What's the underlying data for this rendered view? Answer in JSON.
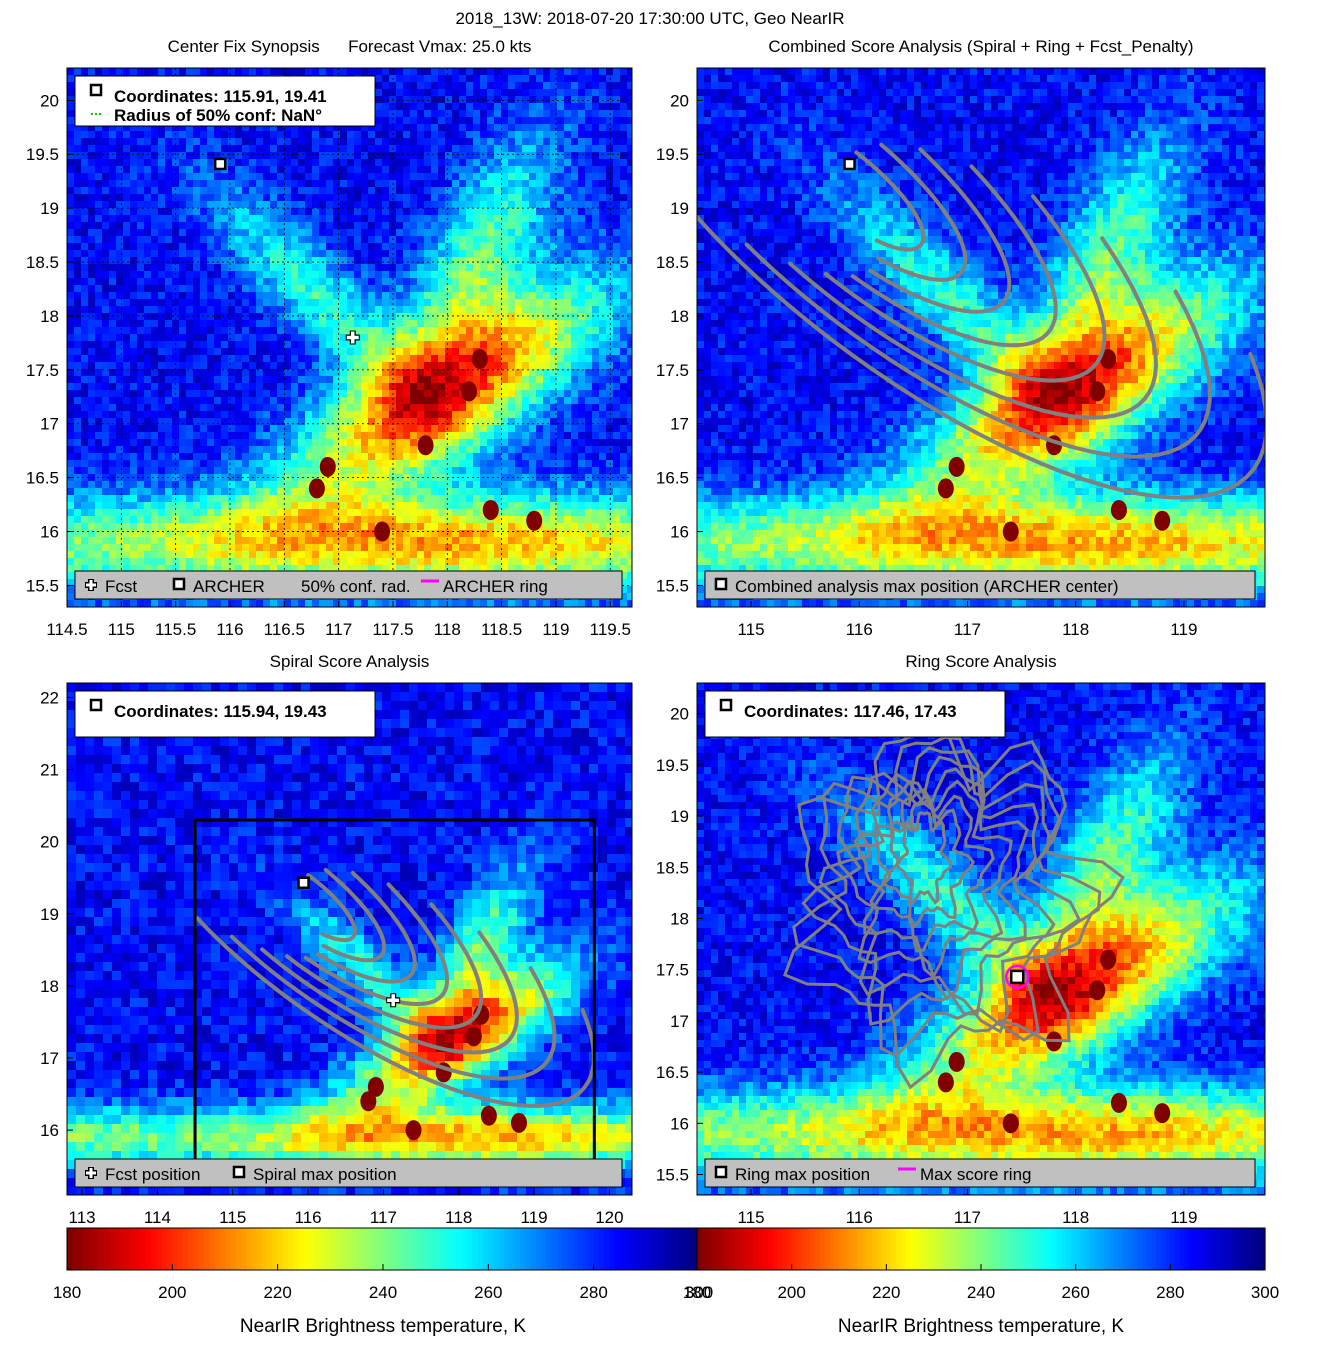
{
  "figure_title": "2018_13W: 2018-07-20 17:30:00 UTC, Geo NearIR",
  "chart_data": [
    {
      "id": "synopsis",
      "type": "heatmap",
      "title": "Center Fix Synopsis      Forecast Vmax: 25.0 kts",
      "xlim": [
        114.5,
        119.7
      ],
      "ylim": [
        15.3,
        20.3
      ],
      "xticks": [
        "114.5",
        "115",
        "115.5",
        "116",
        "116.5",
        "117",
        "117.5",
        "118",
        "118.5",
        "119",
        "119.5"
      ],
      "xtick_values": [
        114.5,
        115,
        115.5,
        116,
        116.5,
        117,
        117.5,
        118,
        118.5,
        119,
        119.5
      ],
      "yticks": [
        "15.5",
        "16",
        "16.5",
        "17",
        "17.5",
        "18",
        "18.5",
        "19",
        "19.5",
        "20"
      ],
      "ytick_values": [
        15.5,
        16,
        16.5,
        17,
        17.5,
        18,
        18.5,
        19,
        19.5,
        20
      ],
      "grid": true,
      "info_lines": [
        "Coordinates: 115.91, 19.41",
        "Radius of 50% conf: NaN°"
      ],
      "legend_items": [
        "Fcst",
        "ARCHER",
        "50% conf. rad.",
        "ARCHER ring"
      ],
      "archer_center": [
        115.91,
        19.41
      ],
      "forecast_position": [
        117.13,
        17.8
      ]
    },
    {
      "id": "combined",
      "type": "heatmap",
      "title": "Combined Score Analysis (Spiral + Ring + Fcst_Penalty)",
      "xlim": [
        114.5,
        119.75
      ],
      "ylim": [
        15.3,
        20.3
      ],
      "xticks": [
        "115",
        "116",
        "117",
        "118",
        "119"
      ],
      "xtick_values": [
        115,
        116,
        117,
        118,
        119
      ],
      "yticks": [
        "15.5",
        "16",
        "16.5",
        "17",
        "17.5",
        "18",
        "18.5",
        "19",
        "19.5",
        "20"
      ],
      "ytick_values": [
        15.5,
        16,
        16.5,
        17,
        17.5,
        18,
        18.5,
        19,
        19.5,
        20
      ],
      "grid": false,
      "legend_items": [
        "Combined analysis max position (ARCHER center)"
      ],
      "archer_center": [
        115.91,
        19.41
      ]
    },
    {
      "id": "spiral",
      "type": "heatmap",
      "title": "Spiral Score Analysis",
      "xlim": [
        112.8,
        120.3
      ],
      "ylim": [
        15.1,
        22.2
      ],
      "xticks": [
        "113",
        "114",
        "115",
        "116",
        "117",
        "118",
        "119",
        "120"
      ],
      "xtick_values": [
        113,
        114,
        115,
        116,
        117,
        118,
        119,
        120
      ],
      "yticks": [
        "16",
        "17",
        "18",
        "19",
        "20",
        "21",
        "22"
      ],
      "ytick_values": [
        16,
        17,
        18,
        19,
        20,
        21,
        22
      ],
      "grid": false,
      "info_lines": [
        "Coordinates: 115.94, 19.43"
      ],
      "legend_items": [
        "Fcst position",
        "Spiral max position"
      ],
      "spiral_center": [
        115.94,
        19.43
      ],
      "forecast_position": [
        117.13,
        17.8
      ],
      "analysis_box": {
        "lon": [
          114.5,
          119.8
        ],
        "lat": [
          15.3,
          20.3
        ]
      }
    },
    {
      "id": "ring",
      "type": "heatmap",
      "title": "Ring Score Analysis",
      "xlim": [
        114.5,
        119.75
      ],
      "ylim": [
        15.3,
        20.3
      ],
      "xticks": [
        "115",
        "116",
        "117",
        "118",
        "119"
      ],
      "xtick_values": [
        115,
        116,
        117,
        118,
        119
      ],
      "yticks": [
        "15.5",
        "16",
        "16.5",
        "17",
        "17.5",
        "18",
        "18.5",
        "19",
        "19.5",
        "20"
      ],
      "ytick_values": [
        15.5,
        16,
        16.5,
        17,
        17.5,
        18,
        18.5,
        19,
        19.5,
        20
      ],
      "grid": false,
      "info_lines": [
        "Coordinates: 117.46, 17.43"
      ],
      "legend_items": [
        "Ring max position",
        "Max score ring"
      ],
      "ring_center": [
        117.46,
        17.43
      ]
    }
  ],
  "colorbar": {
    "label": "NearIR Brightness temperature, K",
    "range": [
      180,
      300
    ],
    "ticks": [
      "180",
      "200",
      "220",
      "240",
      "260",
      "280",
      "300"
    ],
    "tick_values": [
      180,
      200,
      220,
      240,
      260,
      280,
      300
    ],
    "colormap": "jet_reversed"
  },
  "colors": {
    "center_marker": "#000000",
    "forecast_marker": "#ffffff",
    "spiral_lines": "#808080",
    "ring_circle": "#ff00ff",
    "conf_radius": "#00cc00",
    "legend_bg": "#c0c0c0"
  }
}
